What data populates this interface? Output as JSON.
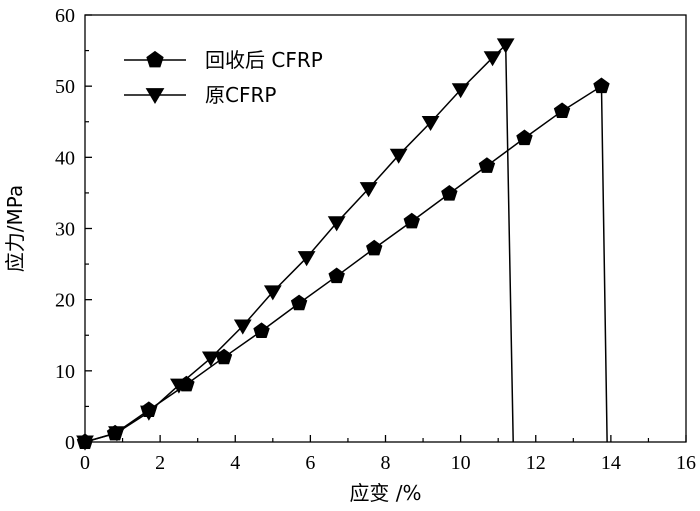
{
  "chart_data": {
    "type": "line",
    "xlabel": "应变 /%",
    "ylabel": "应力/MPa",
    "xlim": [
      0,
      16
    ],
    "ylim": [
      0,
      60
    ],
    "xticks": [
      0,
      2,
      4,
      6,
      8,
      10,
      12,
      14,
      16
    ],
    "yticks": [
      0,
      10,
      20,
      30,
      40,
      50,
      60
    ],
    "grid": false,
    "legend_position": "top-left",
    "series": [
      {
        "name": "回收后 CFRP",
        "marker": "pentagon",
        "color": "#000000",
        "points": [
          [
            0,
            0
          ],
          [
            0.8,
            1.2
          ],
          [
            1.7,
            4.5
          ],
          [
            2.7,
            8.1
          ],
          [
            3.7,
            11.9
          ],
          [
            4.7,
            15.6
          ],
          [
            5.7,
            19.5
          ],
          [
            6.7,
            23.3
          ],
          [
            7.7,
            27.2
          ],
          [
            8.7,
            31.0
          ],
          [
            9.7,
            34.9
          ],
          [
            10.7,
            38.8
          ],
          [
            11.7,
            42.7
          ],
          [
            12.7,
            46.5
          ],
          [
            13.75,
            50.0
          ]
        ],
        "failure_drop": [
          [
            13.75,
            50.0
          ],
          [
            13.9,
            0
          ]
        ]
      },
      {
        "name": "原CFRP",
        "marker": "triangle-down",
        "color": "#000000",
        "points": [
          [
            0,
            0
          ],
          [
            0.85,
            1.3
          ],
          [
            1.7,
            4.2
          ],
          [
            2.5,
            8.0
          ],
          [
            3.35,
            11.8
          ],
          [
            4.2,
            16.3
          ],
          [
            5.0,
            21.1
          ],
          [
            5.9,
            25.9
          ],
          [
            6.7,
            30.8
          ],
          [
            7.55,
            35.6
          ],
          [
            8.35,
            40.3
          ],
          [
            9.2,
            44.9
          ],
          [
            10.0,
            49.5
          ],
          [
            10.85,
            54.0
          ],
          [
            11.2,
            55.8
          ]
        ],
        "failure_drop": [
          [
            11.2,
            55.8
          ],
          [
            11.4,
            0
          ]
        ]
      }
    ]
  }
}
